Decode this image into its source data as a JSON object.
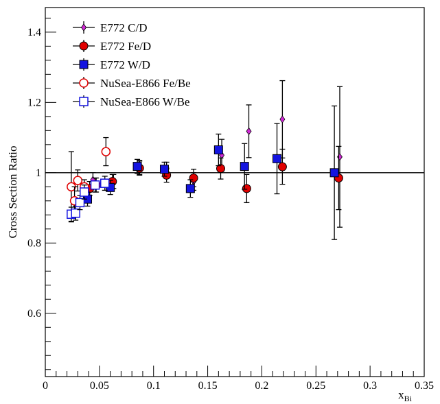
{
  "chart_data": {
    "type": "scatter",
    "title": "",
    "xlabel": "x",
    "xlabel_sub": "Bi",
    "ylabel": "Cross Section Ratio",
    "xlim": [
      0,
      0.35
    ],
    "ylim": [
      0.42,
      1.47
    ],
    "x_ticks": [
      0,
      0.05,
      0.1,
      0.15,
      0.2,
      0.25,
      0.3,
      0.35
    ],
    "x_tick_labels": [
      "0",
      "0.05",
      "0.1",
      "0.15",
      "0.2",
      "0.25",
      "0.3",
      "0.35"
    ],
    "y_ticks": [
      0.6,
      0.8,
      1.0,
      1.2,
      1.4
    ],
    "y_tick_labels": [
      "0.6",
      "0.8",
      "1",
      "1.2",
      "1.4"
    ],
    "reference_line": 1.0,
    "legend_position": "top-left",
    "series": [
      {
        "name": "E772 C/D",
        "marker": "diamond",
        "filled": true,
        "color": "#d12ad6",
        "points": [
          {
            "x": 0.044,
            "y": 0.98,
            "err": 0.02
          },
          {
            "x": 0.063,
            "y": 0.975,
            "err": 0.02
          },
          {
            "x": 0.087,
            "y": 1.015,
            "err": 0.02
          },
          {
            "x": 0.112,
            "y": 1.01,
            "err": 0.02
          },
          {
            "x": 0.137,
            "y": 0.975,
            "err": 0.025
          },
          {
            "x": 0.163,
            "y": 1.05,
            "err": 0.045
          },
          {
            "x": 0.188,
            "y": 1.118,
            "err": 0.075
          },
          {
            "x": 0.219,
            "y": 1.152,
            "err": 0.11
          },
          {
            "x": 0.272,
            "y": 1.045,
            "err": 0.2
          }
        ]
      },
      {
        "name": "E772 Fe/D",
        "marker": "circle",
        "filled": true,
        "color": "#e00000",
        "points": [
          {
            "x": 0.041,
            "y": 0.955,
            "err": 0.02
          },
          {
            "x": 0.062,
            "y": 0.975,
            "err": 0.02
          },
          {
            "x": 0.087,
            "y": 1.013,
            "err": 0.02
          },
          {
            "x": 0.112,
            "y": 0.993,
            "err": 0.02
          },
          {
            "x": 0.137,
            "y": 0.985,
            "err": 0.025
          },
          {
            "x": 0.162,
            "y": 1.012,
            "err": 0.03
          },
          {
            "x": 0.186,
            "y": 0.955,
            "err": 0.04
          },
          {
            "x": 0.219,
            "y": 1.017,
            "err": 0.05
          },
          {
            "x": 0.271,
            "y": 0.985,
            "err": 0.09
          }
        ]
      },
      {
        "name": "E772 W/D",
        "marker": "square",
        "filled": true,
        "color": "#1414e0",
        "points": [
          {
            "x": 0.039,
            "y": 0.925,
            "err": 0.02
          },
          {
            "x": 0.06,
            "y": 0.958,
            "err": 0.02
          },
          {
            "x": 0.085,
            "y": 1.018,
            "err": 0.02
          },
          {
            "x": 0.11,
            "y": 1.01,
            "err": 0.02
          },
          {
            "x": 0.134,
            "y": 0.955,
            "err": 0.025
          },
          {
            "x": 0.16,
            "y": 1.065,
            "err": 0.045
          },
          {
            "x": 0.184,
            "y": 1.018,
            "err": 0.065
          },
          {
            "x": 0.214,
            "y": 1.04,
            "err": 0.1
          },
          {
            "x": 0.267,
            "y": 1.0,
            "err": 0.19
          }
        ]
      },
      {
        "name": "NuSea-E866 Fe/Be",
        "marker": "circle",
        "filled": false,
        "color": "#e00000",
        "points": [
          {
            "x": 0.024,
            "y": 0.96,
            "err": 0.1
          },
          {
            "x": 0.03,
            "y": 0.978,
            "err": 0.03
          },
          {
            "x": 0.036,
            "y": 0.96,
            "err": 0.02
          },
          {
            "x": 0.047,
            "y": 0.965,
            "err": 0.02
          },
          {
            "x": 0.056,
            "y": 1.06,
            "err": 0.04
          },
          {
            "x": 0.027,
            "y": 0.92,
            "err": 0.04
          }
        ]
      },
      {
        "name": "NuSea-E866 W/Be",
        "marker": "square",
        "filled": false,
        "color": "#1414e0",
        "points": [
          {
            "x": 0.024,
            "y": 0.882,
            "err": 0.02
          },
          {
            "x": 0.028,
            "y": 0.885,
            "err": 0.02
          },
          {
            "x": 0.032,
            "y": 0.915,
            "err": 0.02
          },
          {
            "x": 0.036,
            "y": 0.945,
            "err": 0.02
          },
          {
            "x": 0.046,
            "y": 0.965,
            "err": 0.02
          },
          {
            "x": 0.055,
            "y": 0.97,
            "err": 0.02
          }
        ]
      }
    ]
  }
}
